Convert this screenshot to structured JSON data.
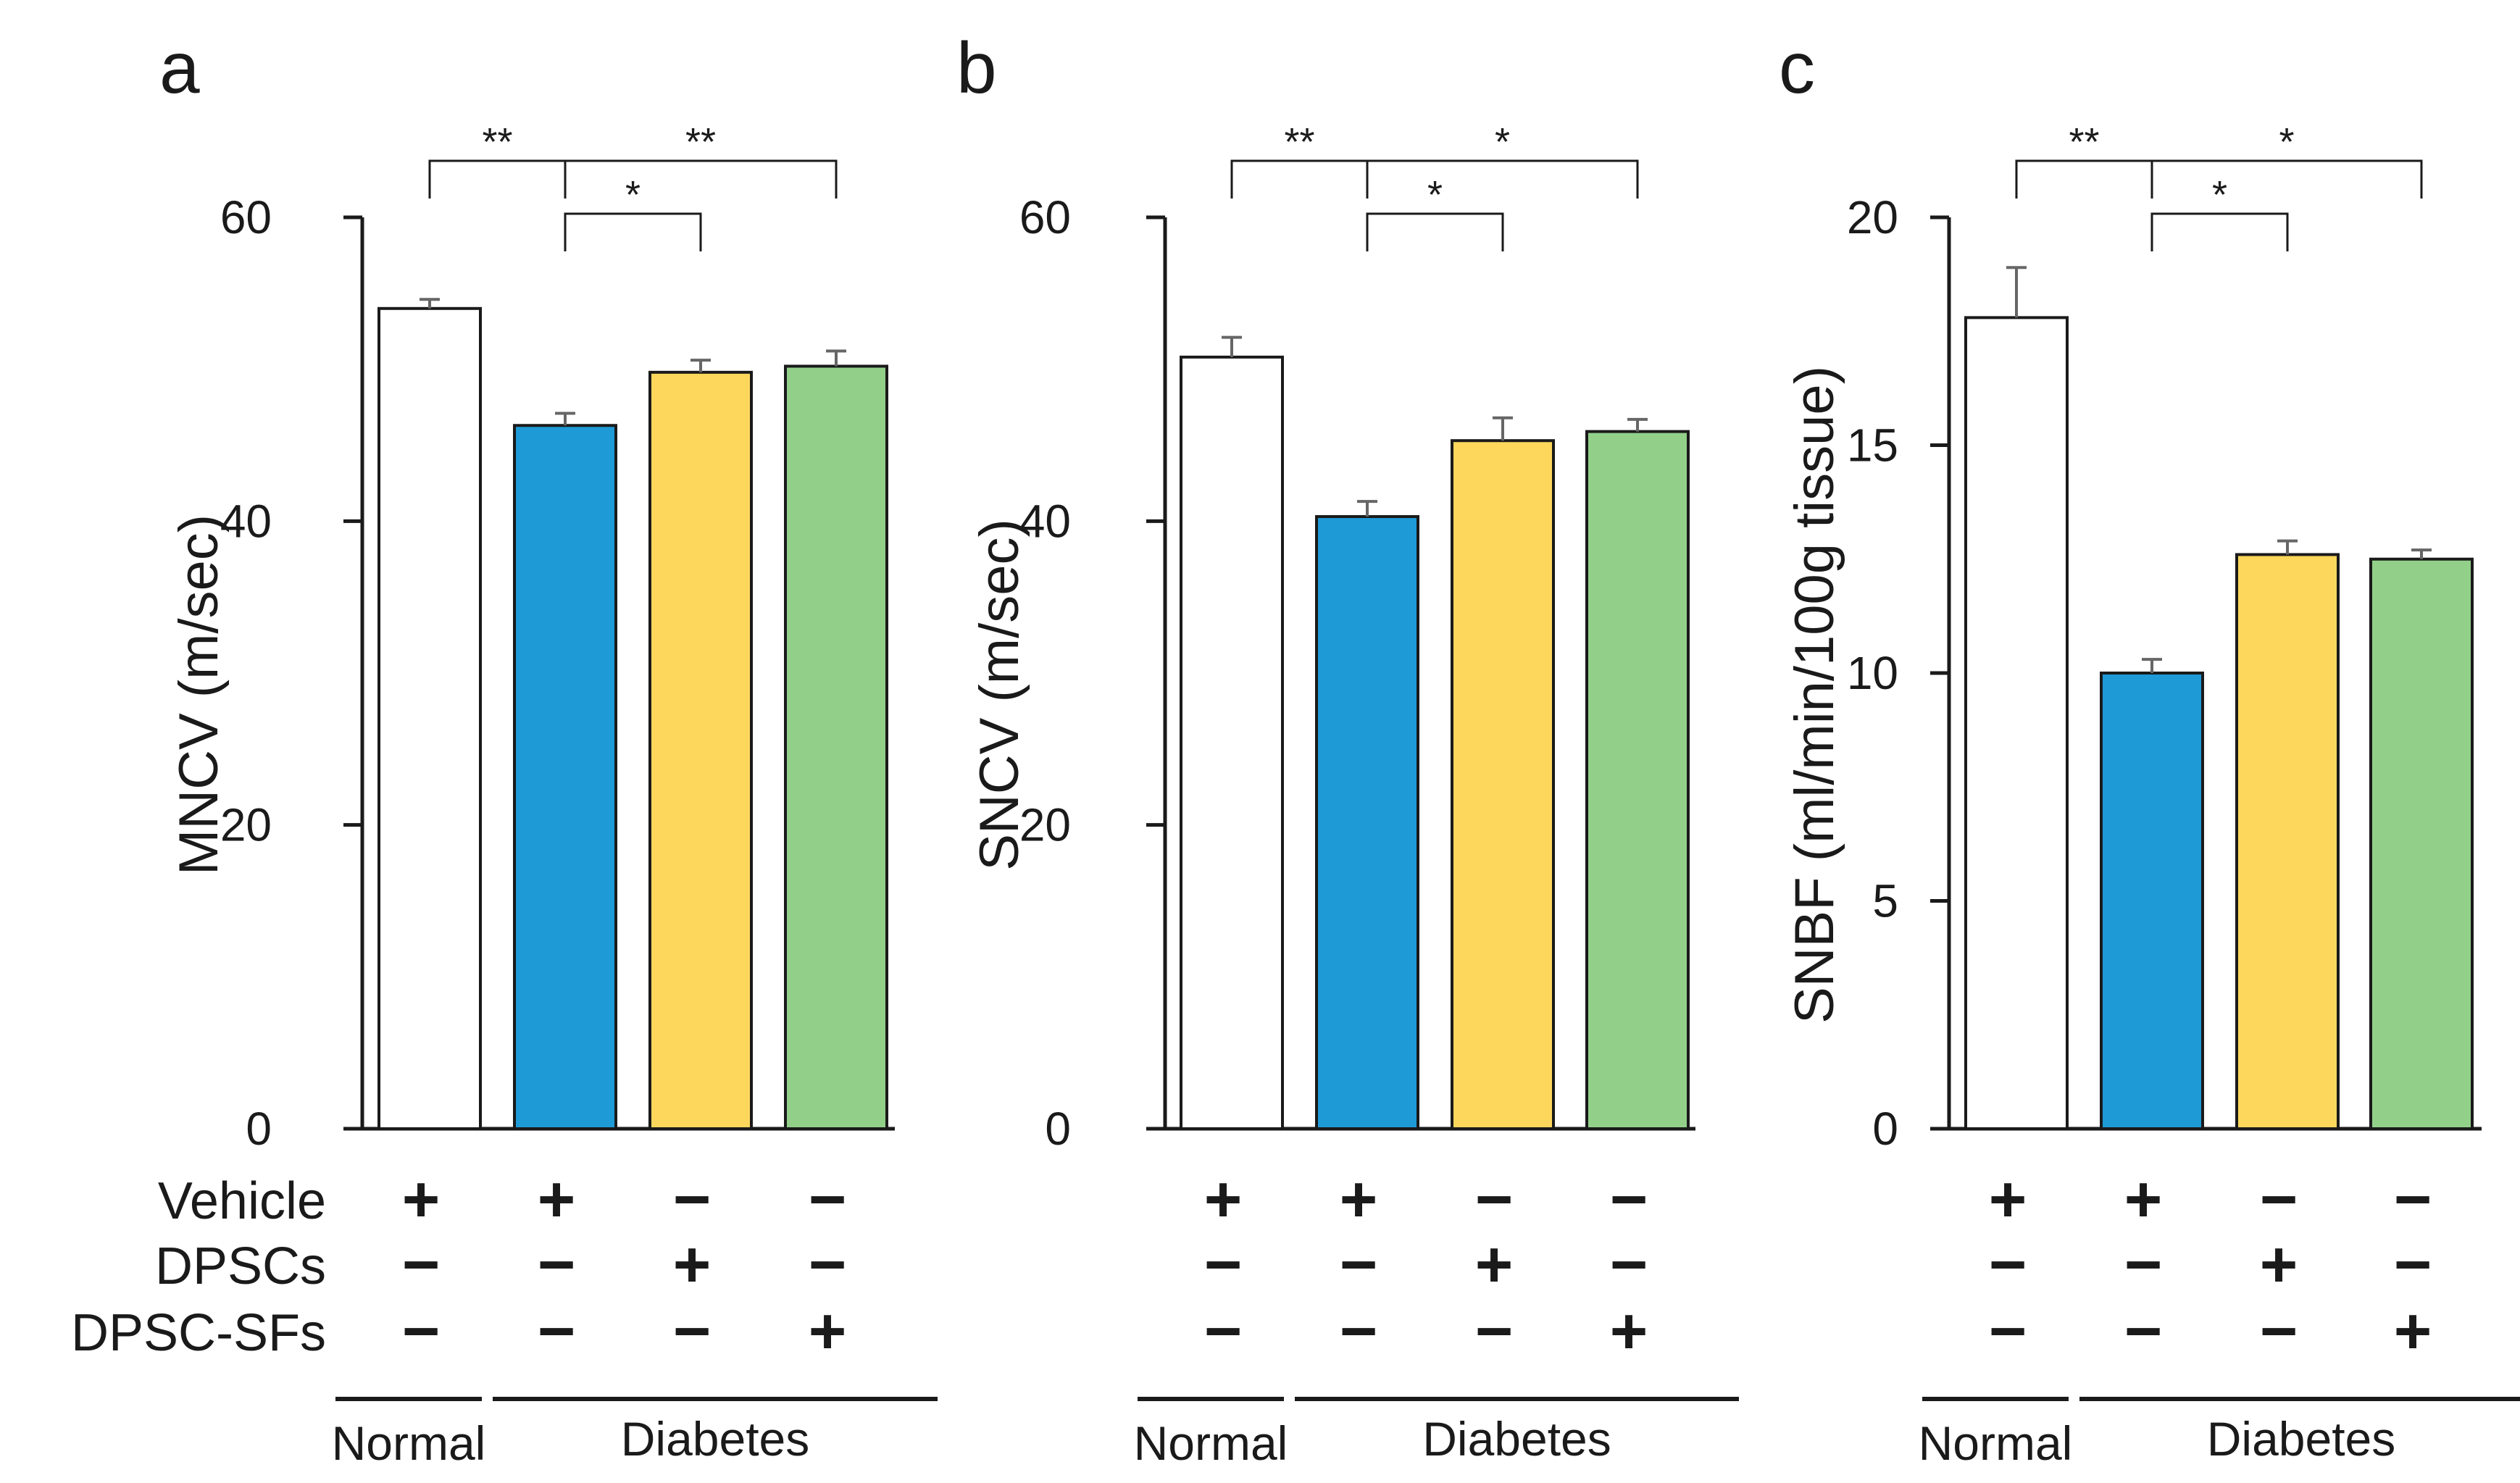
{
  "chart_data": [
    {
      "type": "bar",
      "panel": "a",
      "ylabel": "MNCV (m/sec)",
      "ylim": [
        0,
        60
      ],
      "yticks": [
        0,
        20,
        40,
        60
      ],
      "values": [
        54.0,
        46.3,
        49.8,
        50.2
      ],
      "errors": [
        0.6,
        0.8,
        0.8,
        1.0
      ],
      "significance": [
        {
          "from": 0,
          "to": 1,
          "label": "**",
          "level": 2
        },
        {
          "from": 1,
          "to": 3,
          "label": "**",
          "level": 2
        },
        {
          "from": 1,
          "to": 2,
          "label": "*",
          "level": 1
        }
      ]
    },
    {
      "type": "bar",
      "panel": "b",
      "ylabel": "SNCV (m/sec)",
      "ylim": [
        0,
        60
      ],
      "yticks": [
        0,
        20,
        40,
        60
      ],
      "values": [
        50.8,
        40.3,
        45.3,
        45.9
      ],
      "errors": [
        1.3,
        1.0,
        1.5,
        0.8
      ],
      "significance": [
        {
          "from": 0,
          "to": 1,
          "label": "**",
          "level": 2
        },
        {
          "from": 1,
          "to": 3,
          "label": "*",
          "level": 2
        },
        {
          "from": 1,
          "to": 2,
          "label": "*",
          "level": 1
        }
      ]
    },
    {
      "type": "bar",
      "panel": "c",
      "ylabel": "SNBF  (ml/min/100g tissue)",
      "ylim": [
        0,
        20
      ],
      "yticks": [
        0,
        5,
        10,
        15,
        20
      ],
      "values": [
        17.8,
        10.0,
        12.6,
        12.5
      ],
      "errors": [
        1.1,
        0.3,
        0.3,
        0.2
      ],
      "significance": [
        {
          "from": 0,
          "to": 1,
          "label": "**",
          "level": 2
        },
        {
          "from": 1,
          "to": 3,
          "label": "*",
          "level": 2
        },
        {
          "from": 1,
          "to": 2,
          "label": "*",
          "level": 1
        }
      ]
    }
  ],
  "bar_colors": [
    "#ffffff",
    "#1e9ad6",
    "#fdd75c",
    "#92d08a"
  ],
  "treatments": {
    "row_labels": [
      "Vehicle",
      "DPSCs",
      "DPSC-SFs"
    ],
    "signs": [
      [
        "+",
        "+",
        "−",
        "−"
      ],
      [
        "−",
        "−",
        "+",
        "−"
      ],
      [
        "−",
        "−",
        "−",
        "+"
      ]
    ]
  },
  "groups": {
    "normal": "Normal",
    "diabetes": "Diabetes"
  }
}
